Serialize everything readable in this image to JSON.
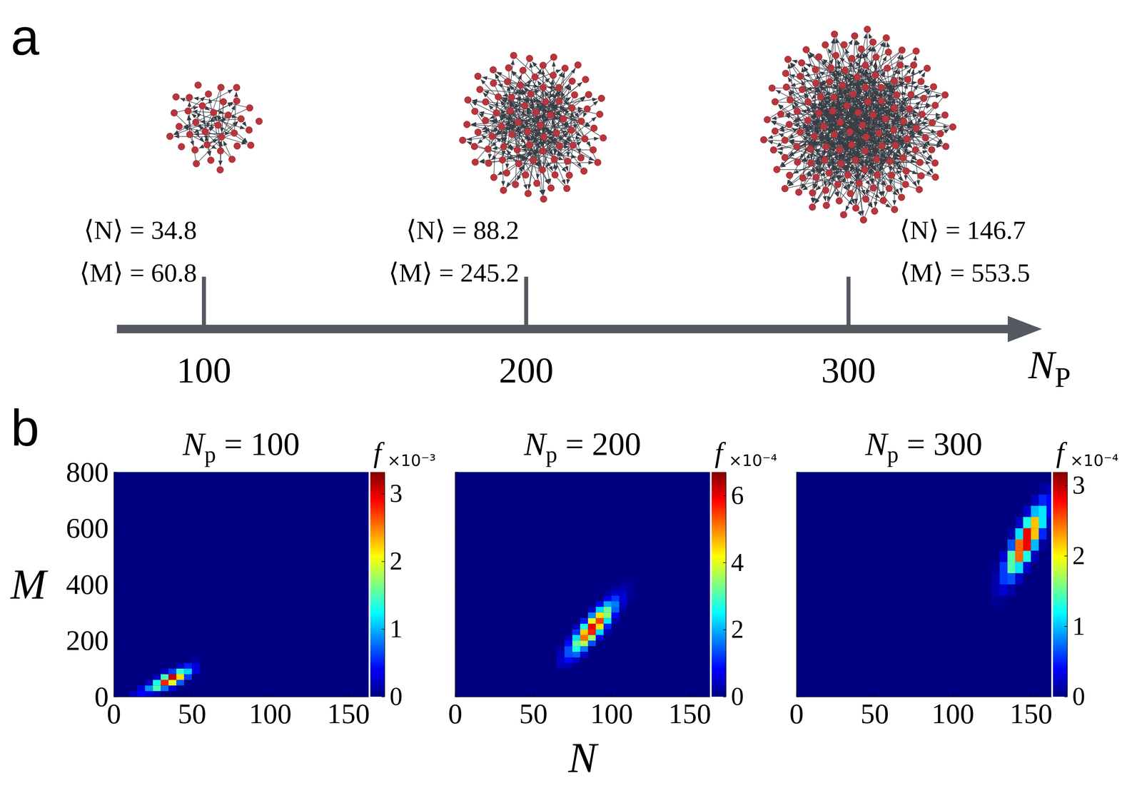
{
  "chart_data": [
    {
      "type": "network",
      "panel_label": "a",
      "x": [
        100,
        200,
        300
      ],
      "xlim": [
        73,
        360
      ],
      "xticks": [
        100,
        200,
        300
      ],
      "xlabel": "N",
      "xlabel_subscript": "P",
      "mean_N_label": "⟨N⟩ = ",
      "mean_N": [
        34.8,
        88.2,
        146.7
      ],
      "mean_M_label": "⟨M⟩ = ",
      "mean_M": [
        60.8,
        245.2,
        553.5
      ]
    },
    {
      "type": "heatmap",
      "panel_label": "b",
      "title": "N",
      "title_subscript": "p",
      "title_suffix": " = 100",
      "ylabel": "M",
      "xlim": [
        0,
        163
      ],
      "xticks": [
        0,
        50,
        100,
        150
      ],
      "ylim": [
        0,
        800
      ],
      "yticks": [
        0,
        200,
        400,
        600,
        800
      ],
      "cell_size": [
        5,
        20
      ],
      "cells": [
        [
          10,
          0,
          0.0002
        ],
        [
          15,
          0,
          0.0004
        ],
        [
          15,
          20,
          0.0003
        ],
        [
          20,
          0,
          0.0003
        ],
        [
          20,
          20,
          0.0009
        ],
        [
          20,
          40,
          0.0002
        ],
        [
          25,
          0,
          0.0002
        ],
        [
          25,
          20,
          0.0015
        ],
        [
          25,
          40,
          0.0013
        ],
        [
          25,
          60,
          0.0002
        ],
        [
          30,
          20,
          0.0008
        ],
        [
          30,
          40,
          0.0028
        ],
        [
          30,
          60,
          0.0015
        ],
        [
          30,
          80,
          0.0002
        ],
        [
          35,
          20,
          0.0003
        ],
        [
          35,
          40,
          0.002
        ],
        [
          35,
          60,
          0.0031
        ],
        [
          35,
          80,
          0.0006
        ],
        [
          40,
          40,
          0.0007
        ],
        [
          40,
          60,
          0.0022
        ],
        [
          40,
          80,
          0.0014
        ],
        [
          40,
          100,
          0.0002
        ],
        [
          45,
          60,
          0.0006
        ],
        [
          45,
          80,
          0.0011
        ],
        [
          45,
          100,
          0.0005
        ],
        [
          50,
          80,
          0.0003
        ],
        [
          50,
          100,
          0.0003
        ],
        [
          50,
          120,
          0.0001
        ]
      ],
      "colorbar_label": "f",
      "colorbar_range": [
        0,
        0.00332
      ],
      "colorbar_ticks": [
        0,
        {
          "value": 0.001,
          "label": "1"
        },
        {
          "value": 0.002,
          "label": "2"
        },
        {
          "value": 0.003,
          "label": "3"
        }
      ],
      "colorbar_exponent": "×10⁻³"
    },
    {
      "type": "heatmap",
      "title": "N",
      "title_subscript": "p",
      "title_suffix": " = 200",
      "xlabel": "N",
      "tick_labels": "x",
      "xlim": [
        0,
        163
      ],
      "xticks": [
        0,
        50,
        100,
        150
      ],
      "ylim": [
        0,
        800
      ],
      "yticks": [
        0,
        200,
        400,
        600,
        800
      ],
      "cell_size": [
        5,
        20
      ],
      "cells": [
        [
          65,
          100,
          3.6e-05
        ],
        [
          65,
          120,
          4.7e-05
        ],
        [
          65,
          140,
          3.9e-05
        ],
        [
          65,
          160,
          2.1e-05
        ],
        [
          70,
          100,
          3.6e-05
        ],
        [
          70,
          120,
          8.7e-05
        ],
        [
          70,
          140,
          0.000136
        ],
        [
          70,
          160,
          0.000136
        ],
        [
          70,
          180,
          8.7e-05
        ],
        [
          70,
          200,
          3.6e-05
        ],
        [
          75,
          120,
          5.1e-05
        ],
        [
          75,
          140,
          0.000149
        ],
        [
          75,
          160,
          0.000269
        ],
        [
          75,
          180,
          0.000316
        ],
        [
          75,
          200,
          0.000234
        ],
        [
          75,
          220,
          0.000114
        ],
        [
          75,
          240,
          3.5e-05
        ],
        [
          80,
          140,
          5e-05
        ],
        [
          80,
          160,
          0.000165
        ],
        [
          80,
          180,
          0.000366
        ],
        [
          80,
          200,
          0.00051
        ],
        [
          80,
          220,
          0.000453
        ],
        [
          80,
          240,
          0.000263
        ],
        [
          80,
          260,
          9.8e-05
        ],
        [
          85,
          180,
          0.000136
        ],
        [
          85,
          200,
          0.000353
        ],
        [
          85,
          220,
          0.00057
        ],
        [
          85,
          240,
          0.000595
        ],
        [
          85,
          260,
          0.000403
        ],
        [
          85,
          280,
          0.000174
        ],
        [
          85,
          300,
          5e-05
        ],
        [
          90,
          200,
          7.1e-05
        ],
        [
          90,
          220,
          0.000224
        ],
        [
          90,
          240,
          0.000437
        ],
        [
          90,
          260,
          0.000546
        ],
        [
          90,
          280,
          0.000437
        ],
        [
          90,
          300,
          0.000224
        ],
        [
          90,
          320,
          7.1e-05
        ],
        [
          95,
          220,
          2.8e-05
        ],
        [
          95,
          240,
          0.000102
        ],
        [
          95,
          260,
          0.000237
        ],
        [
          95,
          280,
          0.000342
        ],
        [
          95,
          300,
          0.000321
        ],
        [
          95,
          320,
          0.000194
        ],
        [
          95,
          340,
          7.4e-05
        ],
        [
          95,
          360,
          1.8e-05
        ],
        [
          100,
          260,
          3.2e-05
        ],
        [
          100,
          280,
          8.5e-05
        ],
        [
          100,
          300,
          0.000147
        ],
        [
          100,
          320,
          0.000165
        ],
        [
          100,
          340,
          0.000119
        ],
        [
          100,
          360,
          5.3e-05
        ],
        [
          100,
          380,
          1.7e-05
        ],
        [
          105,
          300,
          2.2e-05
        ],
        [
          105,
          320,
          4.5e-05
        ],
        [
          105,
          340,
          5.9e-05
        ],
        [
          105,
          360,
          4.9e-05
        ],
        [
          105,
          380,
          2.7e-05
        ],
        [
          105,
          400,
          9e-06
        ],
        [
          110,
          340,
          1e-05
        ],
        [
          110,
          360,
          1.5e-05
        ],
        [
          110,
          380,
          1.5e-05
        ],
        [
          110,
          400,
          1e-05
        ]
      ],
      "colorbar_label": "f",
      "colorbar_range": [
        0,
        0.00067
      ],
      "colorbar_ticks": [
        0,
        {
          "value": 0.0002,
          "label": "2"
        },
        {
          "value": 0.0004,
          "label": "4"
        },
        {
          "value": 0.0006,
          "label": "6"
        }
      ],
      "colorbar_exponent": "×10⁻⁴"
    },
    {
      "type": "heatmap",
      "title": "N",
      "title_subscript": "p",
      "title_suffix": " = 300",
      "tick_labels": "x",
      "xlim": [
        0,
        163
      ],
      "xticks": [
        0,
        50,
        100,
        150
      ],
      "ylim": [
        0,
        800
      ],
      "yticks": [
        0,
        200,
        400,
        600,
        800
      ],
      "cell_size": [
        5,
        40
      ],
      "cells": [
        [
          125,
          320,
          7e-06
        ],
        [
          125,
          360,
          1.5e-05
        ],
        [
          125,
          400,
          1.5e-05
        ],
        [
          125,
          440,
          7e-06
        ],
        [
          130,
          320,
          5e-06
        ],
        [
          130,
          360,
          2.6e-05
        ],
        [
          130,
          400,
          5.8e-05
        ],
        [
          130,
          440,
          5.8e-05
        ],
        [
          130,
          480,
          2.6e-05
        ],
        [
          135,
          360,
          1.3e-05
        ],
        [
          135,
          400,
          6.6e-05
        ],
        [
          135,
          440,
          0.000146
        ],
        [
          135,
          480,
          0.000146
        ],
        [
          135,
          520,
          6.6e-05
        ],
        [
          135,
          560,
          1.3e-05
        ],
        [
          140,
          400,
          2.2e-05
        ],
        [
          140,
          440,
          0.000111
        ],
        [
          140,
          480,
          0.000246
        ],
        [
          140,
          520,
          0.000246
        ],
        [
          140,
          560,
          0.000111
        ],
        [
          140,
          600,
          2.2e-05
        ],
        [
          145,
          440,
          2.5e-05
        ],
        [
          145,
          480,
          0.000127
        ],
        [
          145,
          520,
          0.000282
        ],
        [
          145,
          560,
          0.000282
        ],
        [
          145,
          600,
          0.000127
        ],
        [
          145,
          640,
          2.5e-05
        ],
        [
          150,
          480,
          1.9e-05
        ],
        [
          150,
          520,
          9.8e-05
        ],
        [
          150,
          560,
          0.000218
        ],
        [
          150,
          600,
          0.000218
        ],
        [
          150,
          640,
          9.8e-05
        ],
        [
          150,
          680,
          1.9e-05
        ],
        [
          155,
          520,
          1e-05
        ],
        [
          155,
          560,
          5.1e-05
        ],
        [
          155,
          600,
          0.000113
        ],
        [
          155,
          640,
          0.000113
        ],
        [
          155,
          680,
          5.1e-05
        ],
        [
          155,
          720,
          1e-05
        ],
        [
          160,
          600,
          1.8e-05
        ],
        [
          160,
          640,
          4e-05
        ],
        [
          160,
          680,
          4e-05
        ],
        [
          160,
          720,
          1.8e-05
        ]
      ],
      "colorbar_label": "f",
      "colorbar_range": [
        0,
        0.000319
      ],
      "colorbar_ticks": [
        0,
        {
          "value": 0.0001,
          "label": "1"
        },
        {
          "value": 0.0002,
          "label": "2"
        },
        {
          "value": 0.0003,
          "label": "3"
        }
      ],
      "colorbar_exponent": "×10⁻⁴"
    }
  ]
}
